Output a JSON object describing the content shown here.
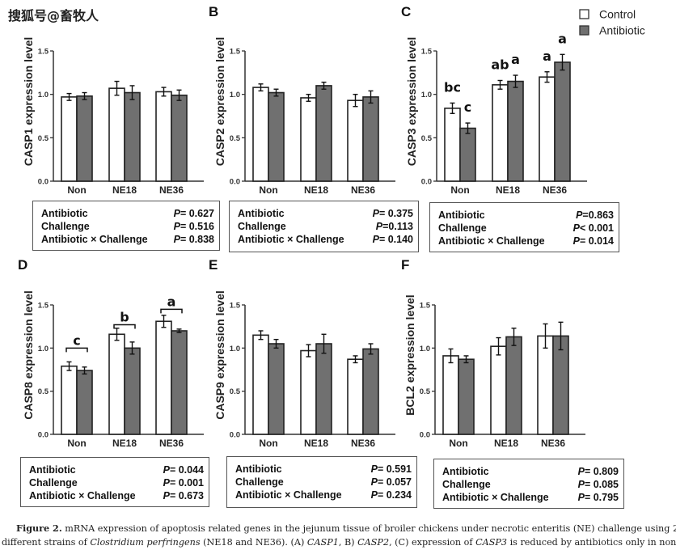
{
  "watermark": "搜狐号@畜牧人",
  "legend": {
    "items": [
      {
        "label": "Control",
        "color": "#ffffff"
      },
      {
        "label": "Antibiotic",
        "color": "#707070"
      }
    ]
  },
  "colors": {
    "control": "#ffffff",
    "antibiotic": "#707070",
    "axis": "#333333"
  },
  "chart_data": [
    {
      "panel": "A",
      "type": "bar",
      "ylabel": "CASP1 expression level",
      "categories": [
        "Non",
        "NE18",
        "NE36"
      ],
      "ylim": [
        0,
        1.5
      ],
      "yticks": [
        "0.0",
        "0.5",
        "1.0",
        "1.5"
      ],
      "series": [
        {
          "name": "Control",
          "values": [
            0.97,
            1.07,
            1.03
          ],
          "errors": [
            0.04,
            0.08,
            0.05
          ]
        },
        {
          "name": "Antibiotic",
          "values": [
            0.98,
            1.02,
            0.99
          ],
          "errors": [
            0.04,
            0.08,
            0.06
          ]
        }
      ],
      "letters": [],
      "brackets": [],
      "stats": [
        {
          "label": "Antibiotic",
          "p": "= 0.627"
        },
        {
          "label": "Challenge",
          "p": "= 0.516"
        },
        {
          "label": "Antibiotic × Challenge",
          "p": "= 0.838"
        }
      ]
    },
    {
      "panel": "B",
      "type": "bar",
      "ylabel": "CASP2 expression level",
      "categories": [
        "Non",
        "NE18",
        "NE36"
      ],
      "ylim": [
        0,
        1.5
      ],
      "yticks": [
        "0.0",
        "0.5",
        "1.0",
        "1.5"
      ],
      "series": [
        {
          "name": "Control",
          "values": [
            1.08,
            0.96,
            0.93
          ],
          "errors": [
            0.04,
            0.04,
            0.07
          ]
        },
        {
          "name": "Antibiotic",
          "values": [
            1.02,
            1.1,
            0.97
          ],
          "errors": [
            0.04,
            0.04,
            0.07
          ]
        }
      ],
      "letters": [],
      "brackets": [],
      "stats": [
        {
          "label": "Antibiotic",
          "p": "= 0.375"
        },
        {
          "label": "Challenge",
          "p": "=0.113"
        },
        {
          "label": "Antibiotic × Challenge",
          "p": "= 0.140"
        }
      ]
    },
    {
      "panel": "C",
      "type": "bar",
      "ylabel": "CASP3 expression level",
      "categories": [
        "Non",
        "NE18",
        "NE36"
      ],
      "ylim": [
        0,
        1.5
      ],
      "yticks": [
        "0.0",
        "0.5",
        "1.0",
        "1.5"
      ],
      "series": [
        {
          "name": "Control",
          "values": [
            0.84,
            1.11,
            1.2
          ],
          "errors": [
            0.06,
            0.05,
            0.06
          ]
        },
        {
          "name": "Antibiotic",
          "values": [
            0.61,
            1.15,
            1.37
          ],
          "errors": [
            0.06,
            0.07,
            0.09
          ]
        }
      ],
      "letters": [
        {
          "group": 0,
          "series": 0,
          "text": "bc"
        },
        {
          "group": 0,
          "series": 1,
          "text": "c"
        },
        {
          "group": 1,
          "series": 0,
          "text": "ab"
        },
        {
          "group": 1,
          "series": 1,
          "text": "a"
        },
        {
          "group": 2,
          "series": 0,
          "text": "a"
        },
        {
          "group": 2,
          "series": 1,
          "text": "a"
        }
      ],
      "brackets": [],
      "stats": [
        {
          "label": "Antibiotic",
          "p": "=0.863"
        },
        {
          "label": "Challenge",
          "p": "< 0.001"
        },
        {
          "label": "Antibiotic × Challenge",
          "p": "= 0.014"
        }
      ]
    },
    {
      "panel": "D",
      "type": "bar",
      "ylabel": "CASP8 expression level",
      "categories": [
        "Non",
        "NE18",
        "NE36"
      ],
      "ylim": [
        0,
        1.5
      ],
      "yticks": [
        "0.0",
        "0.5",
        "1.0",
        "1.5"
      ],
      "series": [
        {
          "name": "Control",
          "values": [
            0.79,
            1.16,
            1.31
          ],
          "errors": [
            0.05,
            0.07,
            0.07
          ]
        },
        {
          "name": "Antibiotic",
          "values": [
            0.74,
            1.0,
            1.2
          ],
          "errors": [
            0.04,
            0.07,
            0.02
          ]
        }
      ],
      "letters": [],
      "brackets": [
        {
          "group": 0,
          "text": "c",
          "level": 1.0
        },
        {
          "group": 1,
          "text": "b",
          "level": 1.27
        },
        {
          "group": 2,
          "text": "a",
          "level": 1.45
        }
      ],
      "stats": [
        {
          "label": "Antibiotic",
          "p": "= 0.044"
        },
        {
          "label": "Challenge",
          "p": "= 0.001"
        },
        {
          "label": "Antibiotic × Challenge",
          "p": "= 0.673"
        }
      ]
    },
    {
      "panel": "E",
      "type": "bar",
      "ylabel": "CASP9 expression level",
      "categories": [
        "Non",
        "NE18",
        "NE36"
      ],
      "ylim": [
        0,
        1.5
      ],
      "yticks": [
        "0.0",
        "0.5",
        "1.0",
        "1.5"
      ],
      "series": [
        {
          "name": "Control",
          "values": [
            1.15,
            0.97,
            0.87
          ],
          "errors": [
            0.05,
            0.07,
            0.04
          ]
        },
        {
          "name": "Antibiotic",
          "values": [
            1.05,
            1.05,
            0.99
          ],
          "errors": [
            0.05,
            0.11,
            0.06
          ]
        }
      ],
      "letters": [],
      "brackets": [],
      "stats": [
        {
          "label": "Antibiotic",
          "p": "= 0.591"
        },
        {
          "label": "Challenge",
          "p": "= 0.057"
        },
        {
          "label": "Antibiotic × Challenge",
          "p": "= 0.234"
        }
      ]
    },
    {
      "panel": "F",
      "type": "bar",
      "ylabel": "BCL2 expression level",
      "categories": [
        "Non",
        "NE18",
        "NE36"
      ],
      "ylim": [
        0,
        1.5
      ],
      "yticks": [
        "0.0",
        "0.5",
        "1.0",
        "1.5"
      ],
      "series": [
        {
          "name": "Control",
          "values": [
            0.91,
            1.02,
            1.14
          ],
          "errors": [
            0.08,
            0.1,
            0.14
          ]
        },
        {
          "name": "Antibiotic",
          "values": [
            0.87,
            1.13,
            1.14
          ],
          "errors": [
            0.04,
            0.1,
            0.16
          ]
        }
      ],
      "letters": [],
      "brackets": [],
      "stats": [
        {
          "label": "Antibiotic",
          "p": "= 0.809"
        },
        {
          "label": "Challenge",
          "p": "= 0.085"
        },
        {
          "label": "Antibiotic × Challenge",
          "p": "= 0.795"
        }
      ]
    }
  ],
  "caption": {
    "label": "Figure 2.",
    "line1_rest": " mRNA expression of apoptosis related genes in the jejunum tissue of broiler chickens under necrotic enteritis (NE) challenge using 2",
    "line2_a": "different strains of ",
    "line2_species": "Clostridium perfringens",
    "line2_b": " (NE18 and NE36). (A) ",
    "gene1": "CASP1",
    "line2_c": ", B) ",
    "gene2": "CASP2",
    "line2_d": ", (C) expression of ",
    "gene3": "CASP3",
    "line2_e": " is reduced by antibiotics only in non-"
  }
}
